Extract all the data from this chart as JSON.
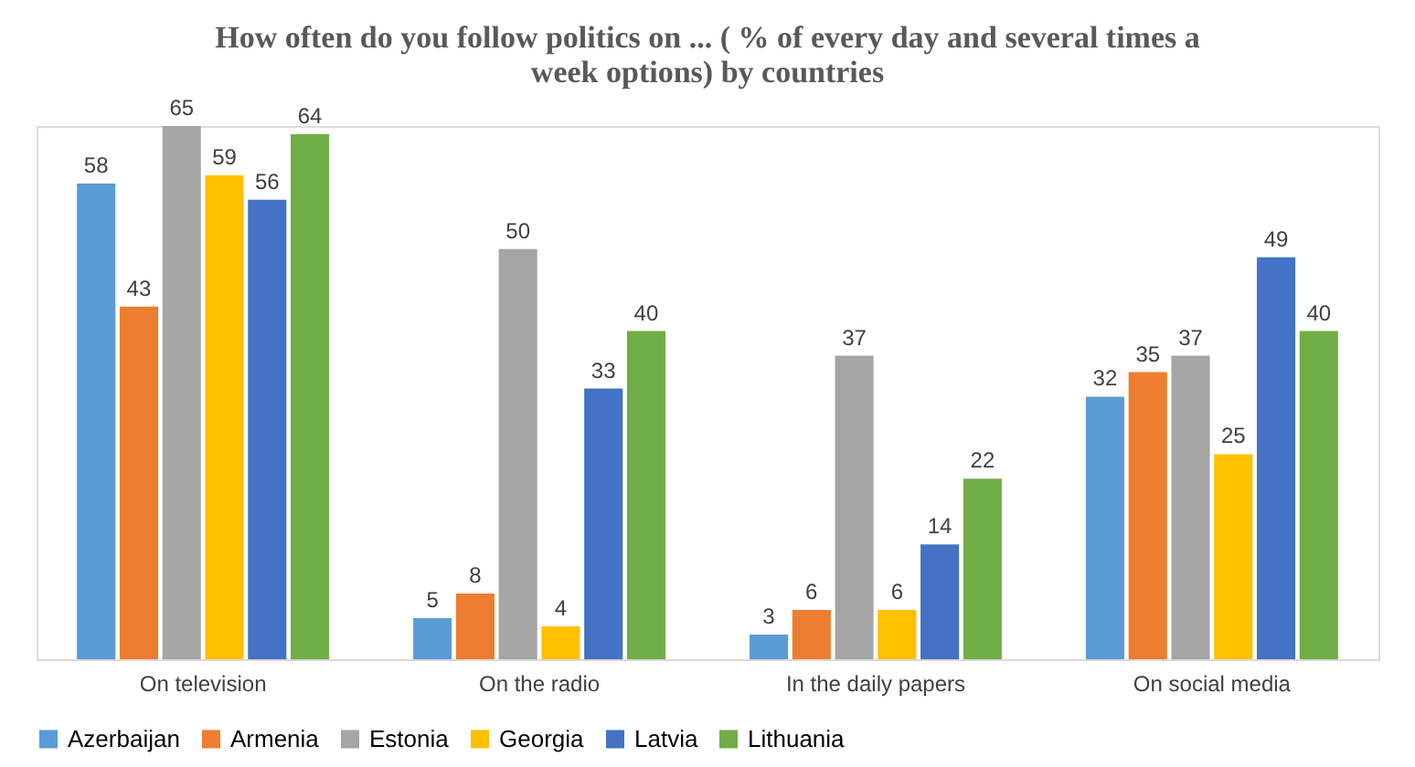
{
  "chart_data": {
    "type": "bar",
    "title": "How often do you follow politics on ... ( % of every day and  several times a week options) by countries",
    "categories": [
      "On television",
      "On the radio",
      "In the daily papers",
      "On social media"
    ],
    "series": [
      {
        "name": "Azerbaijan",
        "color": "#5b9bd5",
        "values": [
          58,
          5,
          3,
          32
        ]
      },
      {
        "name": "Armenia",
        "color": "#ed7d31",
        "values": [
          43,
          8,
          6,
          35
        ]
      },
      {
        "name": "Estonia",
        "color": "#a5a5a5",
        "values": [
          65,
          50,
          37,
          37
        ]
      },
      {
        "name": "Georgia",
        "color": "#ffc000",
        "values": [
          59,
          4,
          6,
          25
        ]
      },
      {
        "name": "Latvia",
        "color": "#4472c4",
        "values": [
          56,
          33,
          14,
          49
        ]
      },
      {
        "name": "Lithuania",
        "color": "#70ad47",
        "values": [
          64,
          40,
          22,
          40
        ]
      }
    ],
    "data_labels": true,
    "legend": "bottom",
    "grid": false
  }
}
